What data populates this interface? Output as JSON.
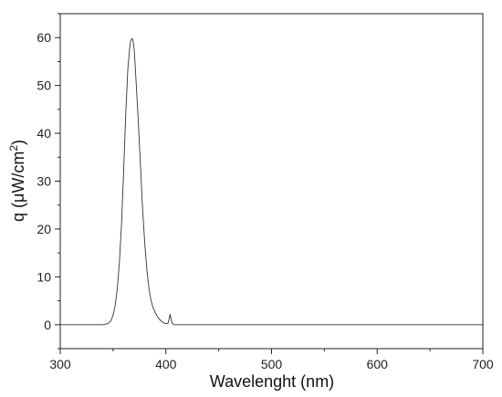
{
  "chart_data": {
    "type": "line",
    "title": "",
    "xlabel": "Wavelenght (nm)",
    "ylabel_prefix": "q (μW/cm",
    "ylabel_sup": "2",
    "ylabel_suffix": ")",
    "xlim": [
      300,
      700
    ],
    "ylim": [
      -5,
      65
    ],
    "x_ticks": [
      300,
      400,
      500,
      600,
      700
    ],
    "y_ticks": [
      0,
      10,
      20,
      30,
      40,
      50,
      60
    ],
    "grid": false,
    "legend": "none",
    "series": [
      {
        "color": "#333333",
        "x": [
          300,
          340,
          345,
          348,
          350,
          352,
          354,
          356,
          358,
          360,
          362,
          364,
          366,
          367,
          368,
          369,
          370,
          371,
          372,
          374,
          376,
          378,
          380,
          382,
          384,
          386,
          388,
          390,
          392,
          394,
          396,
          398,
          400,
          402,
          403,
          404,
          405,
          406,
          407,
          408,
          410,
          415,
          420,
          500,
          600,
          700
        ],
        "y": [
          0,
          0,
          0.2,
          0.8,
          2,
          4,
          7.5,
          13,
          21,
          32,
          44,
          53.5,
          58.5,
          59.5,
          59.8,
          59.3,
          57.5,
          54,
          50,
          42,
          33,
          24,
          17,
          11.5,
          7.5,
          5,
          3.5,
          2.5,
          1.7,
          1.1,
          0.7,
          0.4,
          0.2,
          0.3,
          1.2,
          2.2,
          1.0,
          0.3,
          0.1,
          0,
          0,
          0,
          0,
          0,
          0,
          0
        ]
      }
    ]
  }
}
